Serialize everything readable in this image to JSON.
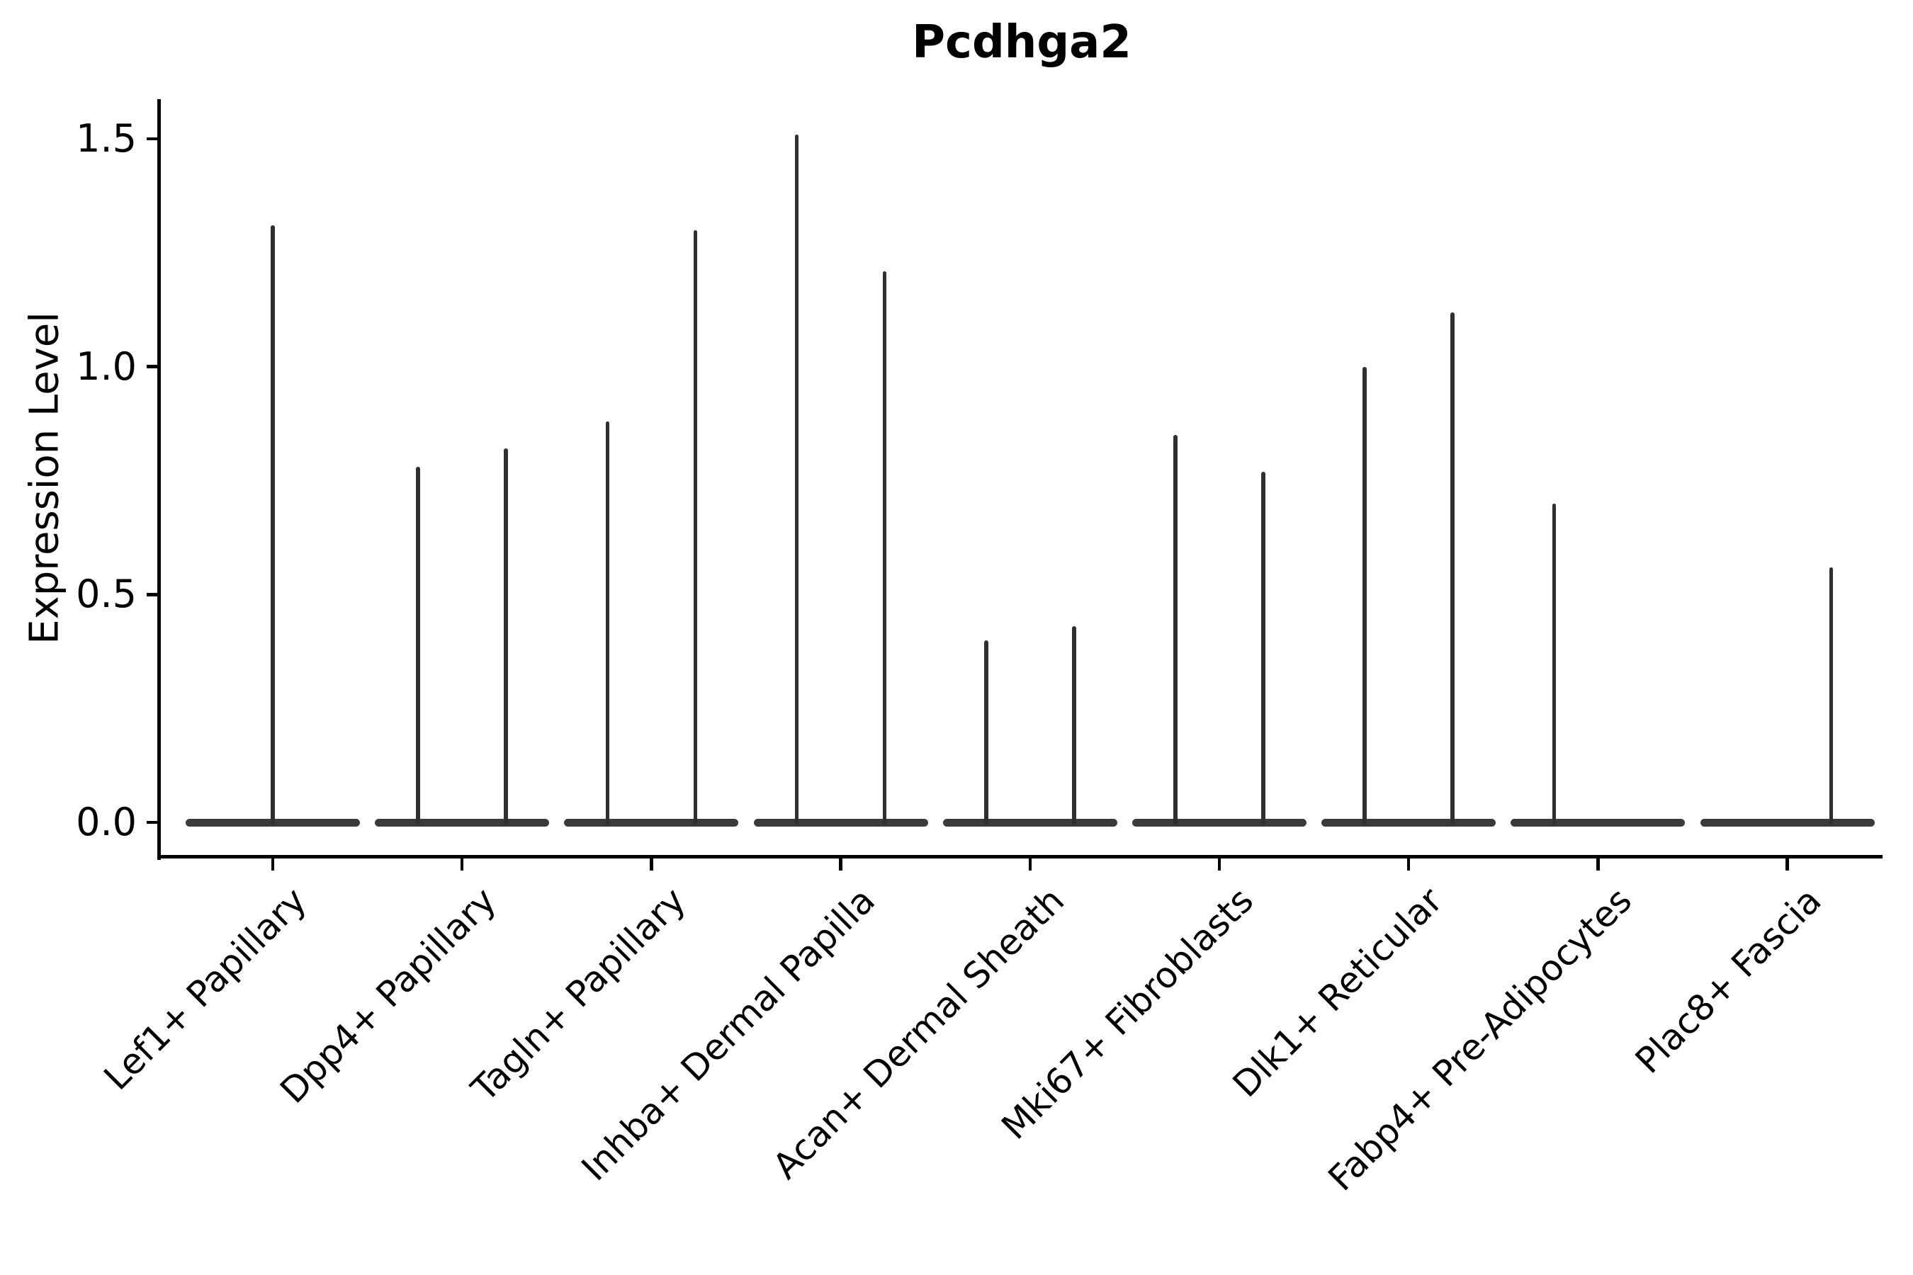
{
  "chart_data": {
    "type": "violin",
    "title": "Pcdhga2",
    "xlabel": "",
    "ylabel": "Expression Level",
    "ylim": [
      -0.07,
      1.59
    ],
    "grid": false,
    "legend_position": "none",
    "yticks": [
      {
        "value": 0.0,
        "label": "0.0"
      },
      {
        "value": 0.5,
        "label": "0.5"
      },
      {
        "value": 1.0,
        "label": "1.0"
      },
      {
        "value": 1.5,
        "label": "1.5"
      }
    ],
    "categories": [
      "Lef1+ Papillary",
      "Dpp4+ Papillary",
      "Tagln+ Papillary",
      "Inhba+ Dermal Papilla",
      "Acan+ Dermal Sheath",
      "Mki67+ Fibroblasts",
      "Dlk1+ Reticular",
      "Fabp4+ Pre-Adipocytes",
      "Plac8+ Fascia"
    ],
    "violins": [
      {
        "category": "Lef1+ Papillary",
        "baseline_value": 0.0,
        "spikes": [
          {
            "offset": "center",
            "peak": 1.31
          }
        ]
      },
      {
        "category": "Dpp4+ Papillary",
        "baseline_value": 0.0,
        "spikes": [
          {
            "offset": "left",
            "peak": 0.78
          },
          {
            "offset": "right",
            "peak": 0.82
          }
        ]
      },
      {
        "category": "Tagln+ Papillary",
        "baseline_value": 0.0,
        "spikes": [
          {
            "offset": "left",
            "peak": 0.88
          },
          {
            "offset": "right",
            "peak": 1.3
          }
        ]
      },
      {
        "category": "Inhba+ Dermal Papilla",
        "baseline_value": 0.0,
        "spikes": [
          {
            "offset": "left",
            "peak": 1.51
          },
          {
            "offset": "right",
            "peak": 1.21
          }
        ]
      },
      {
        "category": "Acan+ Dermal Sheath",
        "baseline_value": 0.0,
        "spikes": [
          {
            "offset": "left",
            "peak": 0.4
          },
          {
            "offset": "right",
            "peak": 0.43
          }
        ]
      },
      {
        "category": "Mki67+ Fibroblasts",
        "baseline_value": 0.0,
        "spikes": [
          {
            "offset": "left",
            "peak": 0.85
          },
          {
            "offset": "right",
            "peak": 0.77
          }
        ]
      },
      {
        "category": "Dlk1+ Reticular",
        "baseline_value": 0.0,
        "spikes": [
          {
            "offset": "left",
            "peak": 1.0
          },
          {
            "offset": "right",
            "peak": 1.12
          }
        ]
      },
      {
        "category": "Fabp4+ Pre-Adipocytes",
        "baseline_value": 0.0,
        "spikes": [
          {
            "offset": "left",
            "peak": 0.7
          }
        ]
      },
      {
        "category": "Plac8+ Fascia",
        "baseline_value": 0.0,
        "spikes": [
          {
            "offset": "right",
            "peak": 0.56
          }
        ]
      }
    ],
    "colors": {
      "background": "#ffffff",
      "axis": "#000000",
      "text": "#000000",
      "violin_base": "#3a3a3a",
      "spike": "#2f2f2f"
    }
  }
}
